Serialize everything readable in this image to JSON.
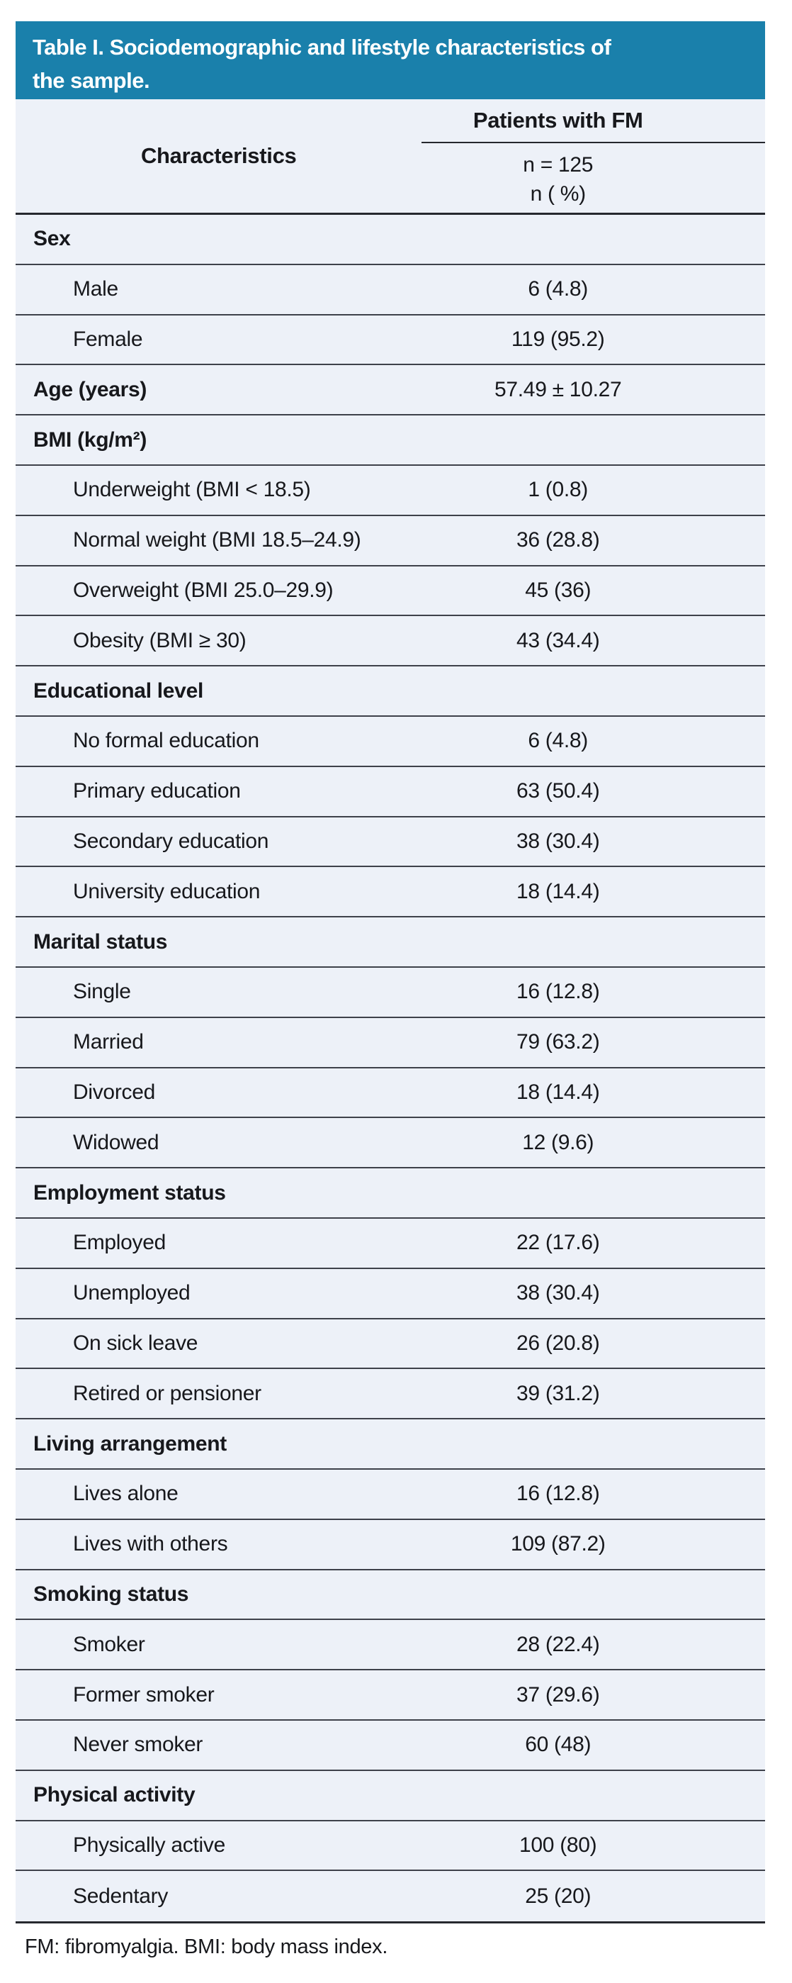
{
  "colors": {
    "accent_teal": "#1a80ab",
    "row_background": "#edf1f8",
    "divider_line": "#3e414a",
    "heavy_line": "#26282e",
    "title_text": "#ffffff",
    "body_text": "#17181c"
  },
  "table": {
    "title": "Table I. Sociodemographic and lifestyle characteristics of the sample.",
    "title_line1": "Table I. Sociodemographic and lifestyle characteristics of",
    "title_line2": "the sample.",
    "header": {
      "characteristics": "Characteristics",
      "group": "Patients with FM",
      "sub1": "n = 125",
      "sub2": "n ( %)"
    },
    "rows": [
      {
        "label": "Sex",
        "value": "",
        "section": true
      },
      {
        "label": "Male",
        "value": "6 (4.8)",
        "section": false
      },
      {
        "label": "Female",
        "value": "119 (95.2)",
        "section": false
      },
      {
        "label": "Age (years)",
        "value": "57.49 ± 10.27",
        "section": true
      },
      {
        "label": "BMI (kg/m²)",
        "value": "",
        "section": true
      },
      {
        "label": "Underweight (BMI < 18.5)",
        "value": "1 (0.8)",
        "section": false
      },
      {
        "label": "Normal weight (BMI 18.5–24.9)",
        "value": "36 (28.8)",
        "section": false
      },
      {
        "label": "Overweight (BMI 25.0–29.9)",
        "value": "45 (36)",
        "section": false
      },
      {
        "label": "Obesity (BMI ≥ 30)",
        "value": "43 (34.4)",
        "section": false
      },
      {
        "label": "Educational level",
        "value": "",
        "section": true
      },
      {
        "label": "No formal education",
        "value": "6 (4.8)",
        "section": false
      },
      {
        "label": "Primary education",
        "value": "63 (50.4)",
        "section": false
      },
      {
        "label": "Secondary education",
        "value": "38 (30.4)",
        "section": false
      },
      {
        "label": "University education",
        "value": "18 (14.4)",
        "section": false
      },
      {
        "label": "Marital status",
        "value": "",
        "section": true
      },
      {
        "label": "Single",
        "value": "16 (12.8)",
        "section": false
      },
      {
        "label": "Married",
        "value": "79 (63.2)",
        "section": false
      },
      {
        "label": "Divorced",
        "value": "18 (14.4)",
        "section": false
      },
      {
        "label": "Widowed",
        "value": "12 (9.6)",
        "section": false
      },
      {
        "label": "Employment status",
        "value": "",
        "section": true
      },
      {
        "label": "Employed",
        "value": "22 (17.6)",
        "section": false
      },
      {
        "label": "Unemployed",
        "value": "38 (30.4)",
        "section": false
      },
      {
        "label": "On sick leave",
        "value": "26 (20.8)",
        "section": false
      },
      {
        "label": "Retired or pensioner",
        "value": "39 (31.2)",
        "section": false
      },
      {
        "label": "Living arrangement",
        "value": "",
        "section": true
      },
      {
        "label": "Lives alone",
        "value": "16 (12.8)",
        "section": false
      },
      {
        "label": "Lives with others",
        "value": "109 (87.2)",
        "section": false
      },
      {
        "label": "Smoking status",
        "value": "",
        "section": true
      },
      {
        "label": "Smoker",
        "value": "28 (22.4)",
        "section": false
      },
      {
        "label": "Former smoker",
        "value": "37 (29.6)",
        "section": false
      },
      {
        "label": "Never smoker",
        "value": "60 (48)",
        "section": false
      },
      {
        "label": "Physical activity",
        "value": "",
        "section": true
      },
      {
        "label": "Physically active",
        "value": "100 (80)",
        "section": false
      },
      {
        "label": "Sedentary",
        "value": "25 (20)",
        "section": false
      }
    ],
    "footnote": "FM: fibromyalgia. BMI: body mass index."
  }
}
